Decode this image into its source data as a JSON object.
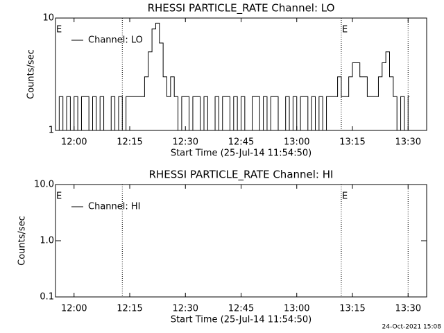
{
  "chart_data": [
    {
      "type": "line",
      "title": "RHESSI PARTICLE_RATE Channel: LO",
      "xlabel": "Start Time (25-Jul-14 11:54:50)",
      "ylabel": "Counts/sec",
      "log_y": true,
      "ylim": [
        1,
        10
      ],
      "yticks": [
        1,
        10
      ],
      "xlim": [
        "11:55",
        "13:35"
      ],
      "xticks": [
        "12:00",
        "12:15",
        "12:30",
        "12:45",
        "13:00",
        "13:15",
        "13:30"
      ],
      "vlines": [
        "12:13",
        "13:12",
        "13:30"
      ],
      "annotations": [
        {
          "text": "E",
          "x": "11:55"
        },
        {
          "text": "E",
          "x": "13:12"
        }
      ],
      "series": [
        {
          "name": "Channel: LO",
          "color": "#000000",
          "x": [
            "11:55",
            "11:56",
            "11:57",
            "11:58",
            "11:59",
            "12:00",
            "12:01",
            "12:02",
            "12:03",
            "12:04",
            "12:05",
            "12:06",
            "12:07",
            "12:08",
            "12:09",
            "12:10",
            "12:11",
            "12:12",
            "12:13",
            "12:14",
            "12:15",
            "12:16",
            "12:17",
            "12:18",
            "12:19",
            "12:20",
            "12:21",
            "12:22",
            "12:23",
            "12:24",
            "12:25",
            "12:26",
            "12:27",
            "12:28",
            "12:29",
            "12:30",
            "12:31",
            "12:32",
            "12:33",
            "12:34",
            "12:35",
            "12:36",
            "12:37",
            "12:38",
            "12:39",
            "12:40",
            "12:41",
            "12:42",
            "12:43",
            "12:44",
            "12:45",
            "12:46",
            "12:47",
            "12:48",
            "12:49",
            "12:50",
            "12:51",
            "12:52",
            "12:53",
            "12:54",
            "12:55",
            "12:56",
            "12:57",
            "12:58",
            "12:59",
            "13:00",
            "13:01",
            "13:02",
            "13:03",
            "13:04",
            "13:05",
            "13:06",
            "13:07",
            "13:08",
            "13:09",
            "13:10",
            "13:11",
            "13:12",
            "13:13",
            "13:14",
            "13:15",
            "13:16",
            "13:17",
            "13:18",
            "13:19",
            "13:20",
            "13:21",
            "13:22",
            "13:23",
            "13:24",
            "13:25",
            "13:26",
            "13:27",
            "13:28",
            "13:29",
            "13:30"
          ],
          "values": [
            1,
            2,
            1,
            2,
            1,
            2,
            1,
            2,
            2,
            1,
            2,
            1,
            2,
            1,
            1,
            2,
            1,
            2,
            1,
            2,
            2,
            2,
            2,
            2,
            3,
            5,
            8,
            9,
            6,
            3,
            2,
            3,
            2,
            1,
            2,
            2,
            1,
            2,
            2,
            1,
            2,
            1,
            1,
            2,
            1,
            2,
            2,
            1,
            2,
            1,
            2,
            1,
            1,
            2,
            2,
            1,
            2,
            1,
            2,
            2,
            1,
            1,
            2,
            1,
            2,
            1,
            2,
            2,
            1,
            2,
            1,
            2,
            1,
            2,
            2,
            2,
            3,
            2,
            2,
            3,
            4,
            4,
            3,
            3,
            2,
            2,
            2,
            3,
            4,
            5,
            3,
            2,
            1,
            2,
            1,
            2
          ]
        }
      ]
    },
    {
      "type": "line",
      "title": "RHESSI PARTICLE_RATE Channel: HI",
      "xlabel": "Start Time (25-Jul-14 11:54:50)",
      "ylabel": "Counts/sec",
      "log_y": true,
      "ylim": [
        0.1,
        10
      ],
      "yticks": [
        0.1,
        {
          "value": 1,
          "label": "1.0"
        },
        {
          "value": 10,
          "label": "10.0"
        }
      ],
      "xlim": [
        "11:55",
        "13:35"
      ],
      "xticks": [
        "12:00",
        "12:15",
        "12:30",
        "12:45",
        "13:00",
        "13:15",
        "13:30"
      ],
      "vlines": [
        "12:13",
        "13:12",
        "13:30"
      ],
      "annotations": [
        {
          "text": "E",
          "x": "11:55"
        },
        {
          "text": "E",
          "x": "13:12"
        }
      ],
      "series": [
        {
          "name": "Channel: HI",
          "color": "#000000",
          "x": [],
          "values": []
        }
      ]
    }
  ],
  "footer": "24-Oct-2021 15:08"
}
